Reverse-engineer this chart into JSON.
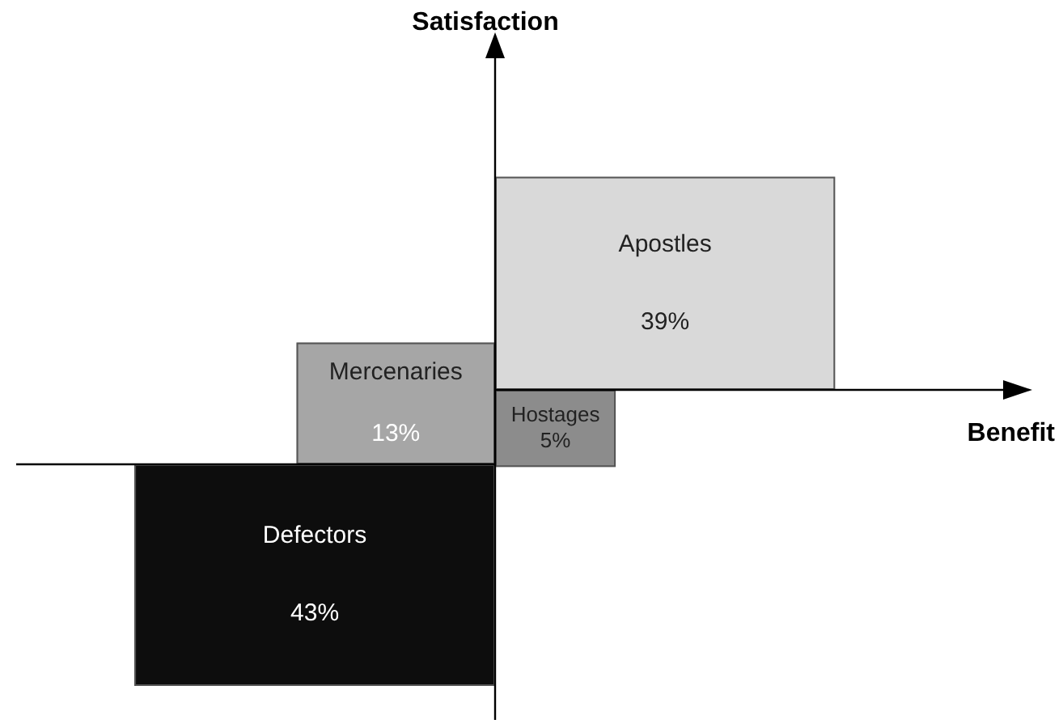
{
  "chart_data": {
    "type": "other",
    "xlabel": "Benefit",
    "ylabel": "Satisfaction",
    "categories": [
      "Apostles",
      "Mercenaries",
      "Hostages",
      "Defectors"
    ],
    "values": [
      39,
      13,
      5,
      43
    ],
    "value_labels": [
      "39%",
      "13%",
      "5%",
      "43%"
    ],
    "colors": [
      "#d9d9d9",
      "#a6a6a6",
      "#8c8c8c",
      "#0d0d0d"
    ]
  }
}
